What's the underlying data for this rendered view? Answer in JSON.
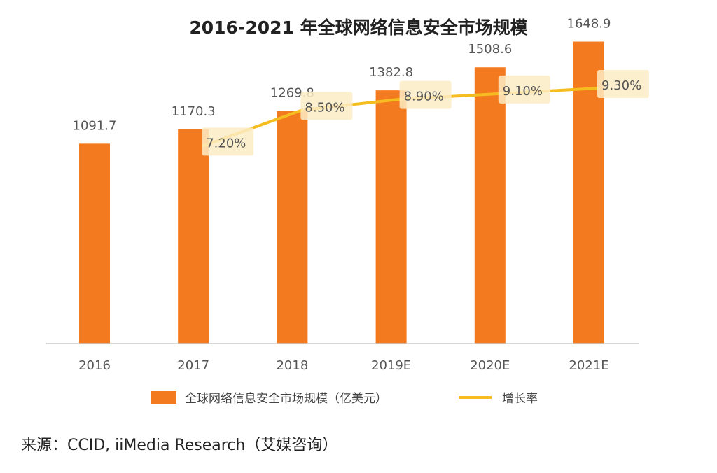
{
  "chart_data": {
    "type": "bar",
    "title": "2016-2021 年全球网络信息安全市场规模",
    "categories": [
      "2016",
      "2017",
      "2018",
      "2019E",
      "2020E",
      "2021E"
    ],
    "series": [
      {
        "name": "全球网络信息安全市场规模（亿美元）",
        "type": "bar",
        "values": [
          1091.7,
          1170.3,
          1269.8,
          1382.8,
          1508.6,
          1648.9
        ],
        "labels": [
          "1091.7",
          "1170.3",
          "1269.8",
          "1382.8",
          "1508.6",
          "1648.9"
        ]
      },
      {
        "name": "增长率",
        "type": "line",
        "values": [
          null,
          7.2,
          8.5,
          8.9,
          9.1,
          9.3
        ],
        "labels": [
          "",
          "7.20%",
          "8.50%",
          "8.90%",
          "9.10%",
          "9.30%"
        ]
      }
    ],
    "ylim": [
      0,
      1800
    ],
    "rate_ylim": [
      0,
      12
    ],
    "xlabel": "",
    "ylabel": "",
    "grid": false,
    "legend_position": "bottom"
  },
  "source": "来源：CCID, iiMedia Research（艾媒咨询）",
  "colors": {
    "bar": "#f47a20",
    "line": "#f5bd1f",
    "label_bg": "#fcecc4",
    "axis": "#cccccc"
  }
}
